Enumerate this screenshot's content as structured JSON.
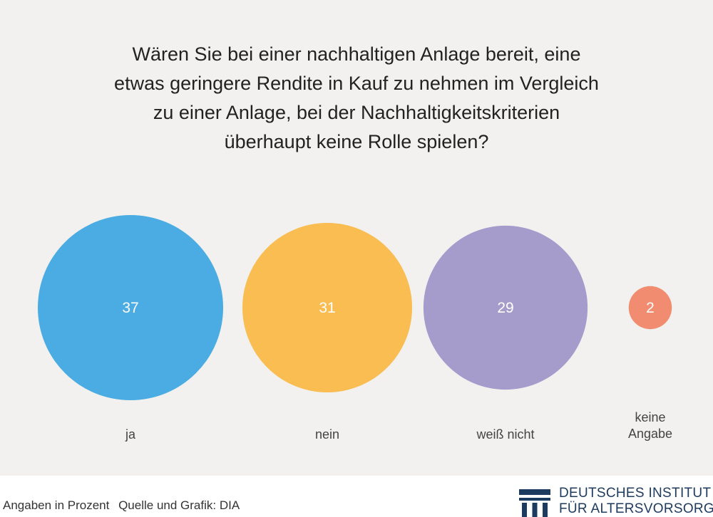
{
  "chart_data": {
    "type": "bubble",
    "title": "Wären Sie bei einer nachhaltigen Anlage bereit, eine etwas geringere Rendite in Kauf zu nehmen im Vergleich zu einer Anlage, bei der Nachhaltigkeitskriterien überhaupt keine Rolle spielen?",
    "title_lines": [
      "Wären Sie bei einer nachhaltigen Anlage bereit, eine",
      "etwas geringere Rendite in Kauf zu nehmen im Vergleich",
      "zu einer Anlage, bei der Nachhaltigkeitskriterien",
      "überhaupt keine Rolle spielen?"
    ],
    "categories": [
      {
        "label": "ja",
        "label_lines": [
          "ja"
        ],
        "value": 37,
        "color": "#4aace3"
      },
      {
        "label": "nein",
        "label_lines": [
          "nein"
        ],
        "value": 31,
        "color": "#f9bd52"
      },
      {
        "label": "weiß nicht",
        "label_lines": [
          "weiß nicht"
        ],
        "value": 29,
        "color": "#a59ccc"
      },
      {
        "label": "keine Angabe",
        "label_lines": [
          "keine",
          "Angabe"
        ],
        "value": 2,
        "color": "#f28c70"
      }
    ],
    "unit_note": "Angaben in Prozent"
  },
  "footer": {
    "unit_note": "Angaben in Prozent",
    "source": "Quelle und Grafik: DIA"
  },
  "logo": {
    "line1": "DEUTSCHES INSTITUT",
    "line2": "FÜR ALTERSVORSORGE",
    "color": "#1d3a5f"
  }
}
